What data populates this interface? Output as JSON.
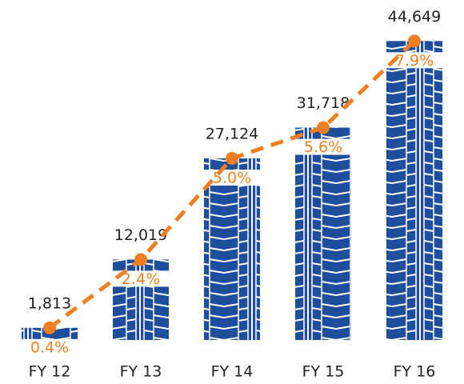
{
  "chart_data": {
    "type": "bar",
    "categories": [
      "FY 12",
      "FY 13",
      "FY 14",
      "FY 15",
      "FY 16"
    ],
    "series": [
      {
        "values": [
          1813,
          12019,
          27124,
          31718,
          44649
        ],
        "value_labels": [
          "1,813",
          "12,019",
          "27,124",
          "31,718",
          "44,649"
        ],
        "color": "#1f4e9c",
        "line_color": "#f07f22"
      },
      {
        "values": [
          0.4,
          2.4,
          5.0,
          5.6,
          7.9
        ],
        "value_labels": [
          "0.4%",
          "2.4%",
          "5.0%",
          "5.6%",
          "7.9%"
        ],
        "color": "#f07f22"
      }
    ],
    "ylim": [
      0,
      46000
    ]
  }
}
